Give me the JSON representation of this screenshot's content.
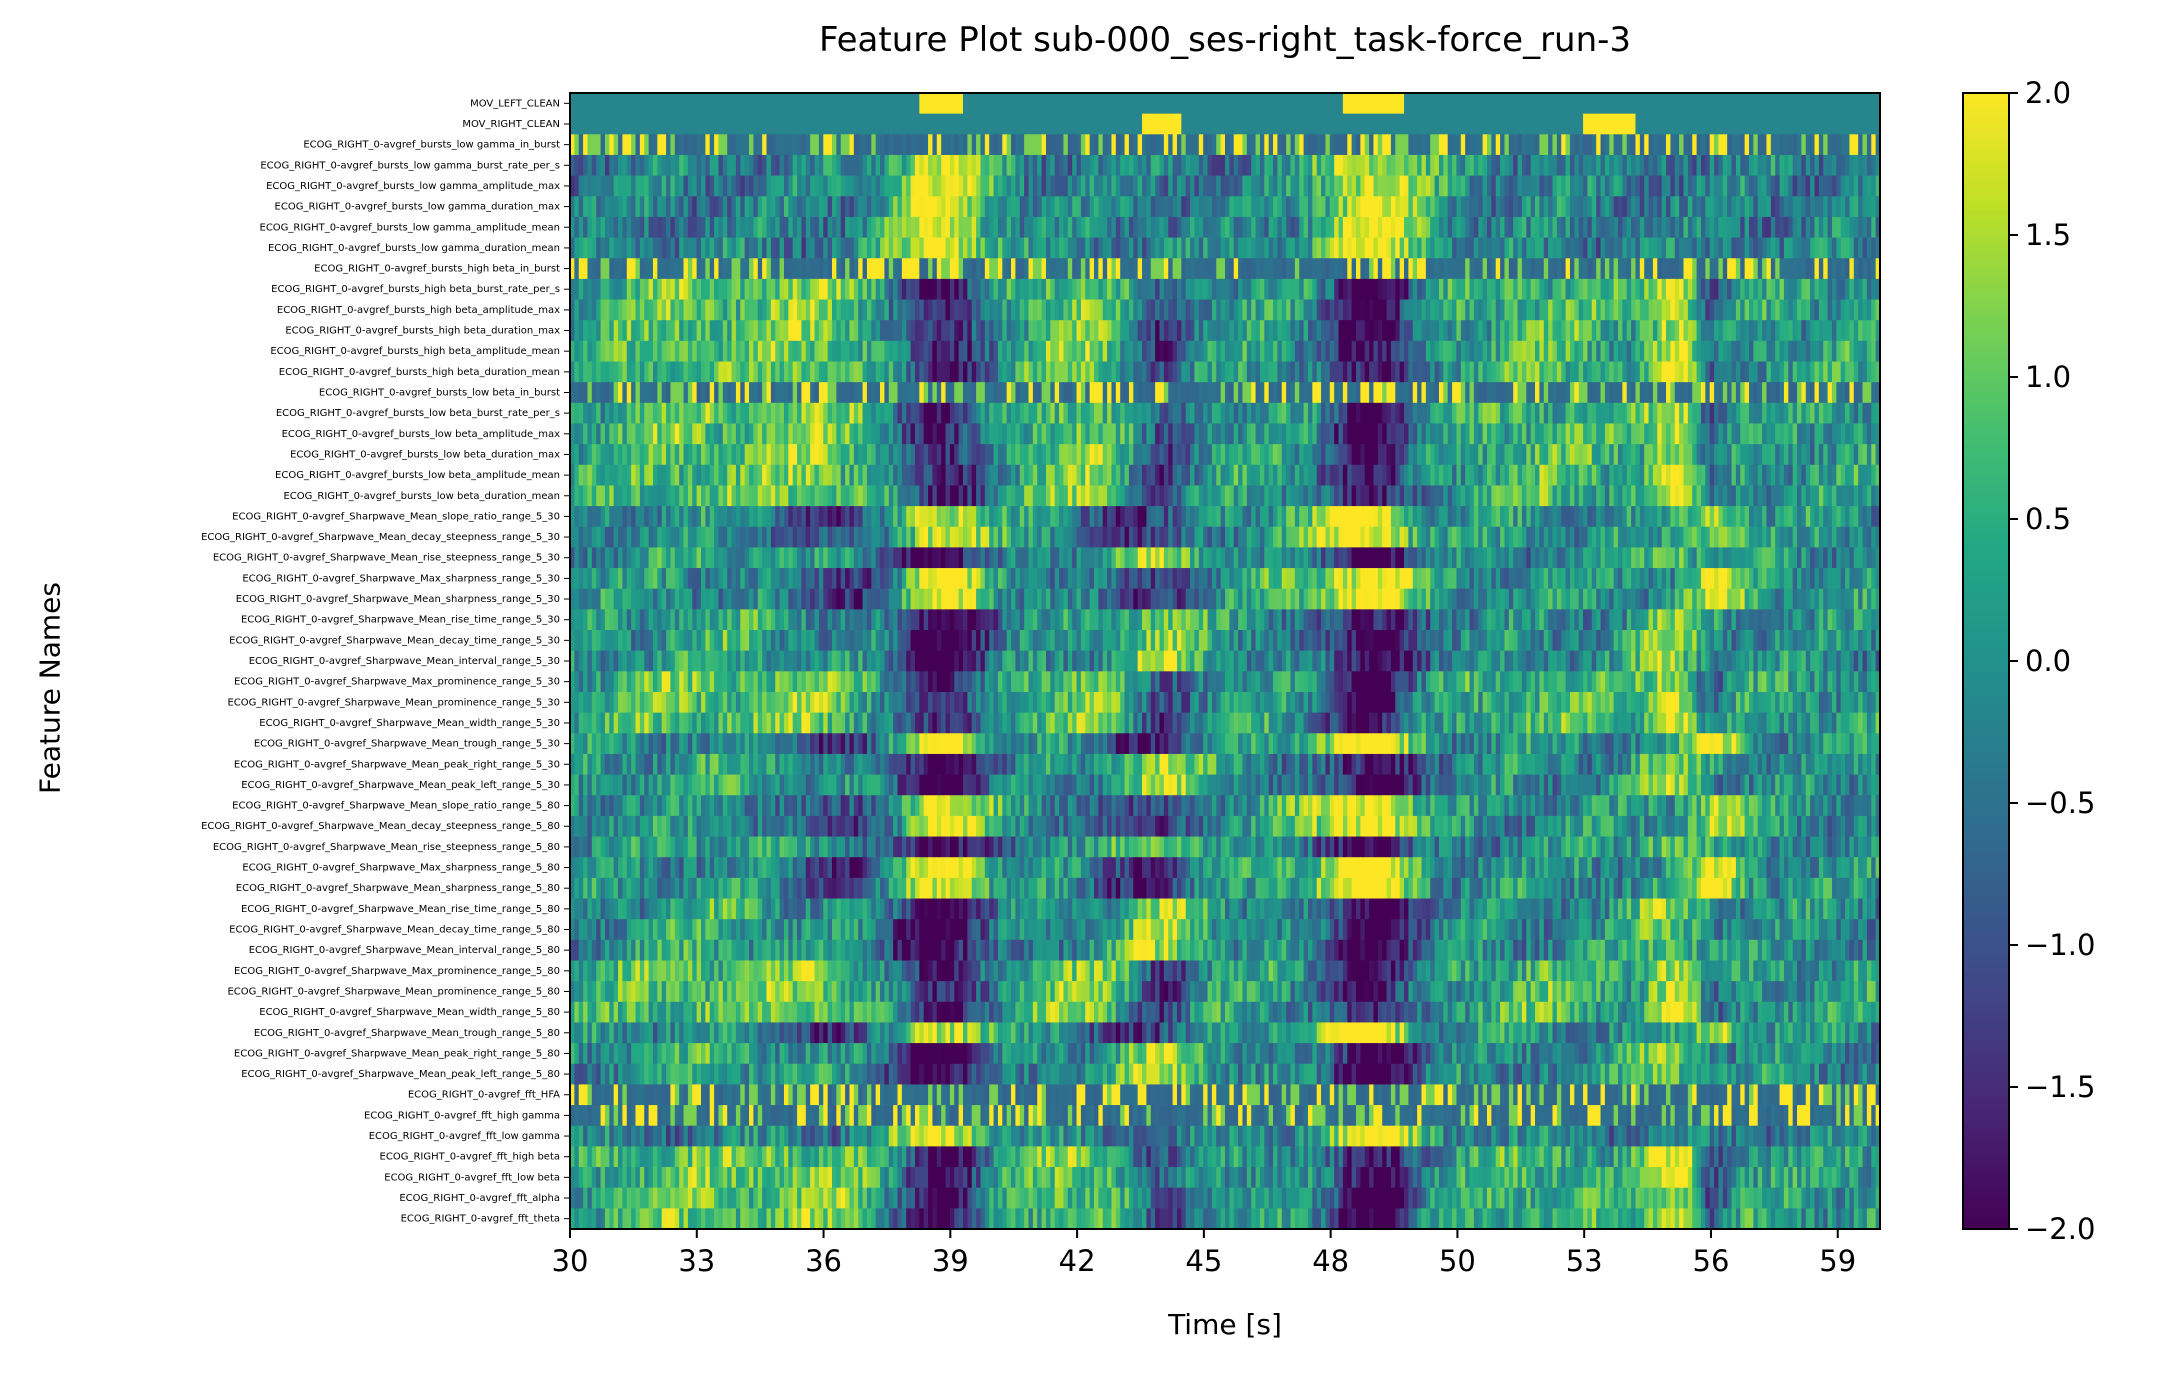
{
  "chart_data": {
    "type": "heatmap",
    "title": "Feature Plot sub-000_ses-right_task-force_run-3",
    "xlabel": "Time [s]",
    "ylabel": "Feature Names",
    "x_ticks": [
      "30",
      "33",
      "36",
      "39",
      "42",
      "45",
      "48",
      "50",
      "53",
      "56",
      "59"
    ],
    "x_tick_positions": [
      30,
      33,
      36,
      39,
      42,
      45,
      48,
      51,
      54,
      57,
      60
    ],
    "xlim": [
      30,
      61
    ],
    "colorscale": "viridis",
    "colorbar": {
      "ticks": [
        "−2.0",
        "−1.5",
        "−1.0",
        "−0.5",
        "0.0",
        "0.5",
        "1.0",
        "1.5",
        "2.0"
      ],
      "range": [
        -2.0,
        2.0
      ]
    },
    "features": [
      "MOV_LEFT_CLEAN",
      "MOV_RIGHT_CLEAN",
      "ECOG_RIGHT_0-avgref_bursts_low gamma_in_burst",
      "ECOG_RIGHT_0-avgref_bursts_low gamma_burst_rate_per_s",
      "ECOG_RIGHT_0-avgref_bursts_low gamma_amplitude_max",
      "ECOG_RIGHT_0-avgref_bursts_low gamma_duration_max",
      "ECOG_RIGHT_0-avgref_bursts_low gamma_amplitude_mean",
      "ECOG_RIGHT_0-avgref_bursts_low gamma_duration_mean",
      "ECOG_RIGHT_0-avgref_bursts_high beta_in_burst",
      "ECOG_RIGHT_0-avgref_bursts_high beta_burst_rate_per_s",
      "ECOG_RIGHT_0-avgref_bursts_high beta_amplitude_max",
      "ECOG_RIGHT_0-avgref_bursts_high beta_duration_max",
      "ECOG_RIGHT_0-avgref_bursts_high beta_amplitude_mean",
      "ECOG_RIGHT_0-avgref_bursts_high beta_duration_mean",
      "ECOG_RIGHT_0-avgref_bursts_low beta_in_burst",
      "ECOG_RIGHT_0-avgref_bursts_low beta_burst_rate_per_s",
      "ECOG_RIGHT_0-avgref_bursts_low beta_amplitude_max",
      "ECOG_RIGHT_0-avgref_bursts_low beta_duration_max",
      "ECOG_RIGHT_0-avgref_bursts_low beta_amplitude_mean",
      "ECOG_RIGHT_0-avgref_bursts_low beta_duration_mean",
      "ECOG_RIGHT_0-avgref_Sharpwave_Mean_slope_ratio_range_5_30",
      "ECOG_RIGHT_0-avgref_Sharpwave_Mean_decay_steepness_range_5_30",
      "ECOG_RIGHT_0-avgref_Sharpwave_Mean_rise_steepness_range_5_30",
      "ECOG_RIGHT_0-avgref_Sharpwave_Max_sharpness_range_5_30",
      "ECOG_RIGHT_0-avgref_Sharpwave_Mean_sharpness_range_5_30",
      "ECOG_RIGHT_0-avgref_Sharpwave_Mean_rise_time_range_5_30",
      "ECOG_RIGHT_0-avgref_Sharpwave_Mean_decay_time_range_5_30",
      "ECOG_RIGHT_0-avgref_Sharpwave_Mean_interval_range_5_30",
      "ECOG_RIGHT_0-avgref_Sharpwave_Max_prominence_range_5_30",
      "ECOG_RIGHT_0-avgref_Sharpwave_Mean_prominence_range_5_30",
      "ECOG_RIGHT_0-avgref_Sharpwave_Mean_width_range_5_30",
      "ECOG_RIGHT_0-avgref_Sharpwave_Mean_trough_range_5_30",
      "ECOG_RIGHT_0-avgref_Sharpwave_Mean_peak_right_range_5_30",
      "ECOG_RIGHT_0-avgref_Sharpwave_Mean_peak_left_range_5_30",
      "ECOG_RIGHT_0-avgref_Sharpwave_Mean_slope_ratio_range_5_80",
      "ECOG_RIGHT_0-avgref_Sharpwave_Mean_decay_steepness_range_5_80",
      "ECOG_RIGHT_0-avgref_Sharpwave_Mean_rise_steepness_range_5_80",
      "ECOG_RIGHT_0-avgref_Sharpwave_Max_sharpness_range_5_80",
      "ECOG_RIGHT_0-avgref_Sharpwave_Mean_sharpness_range_5_80",
      "ECOG_RIGHT_0-avgref_Sharpwave_Mean_rise_time_range_5_80",
      "ECOG_RIGHT_0-avgref_Sharpwave_Mean_decay_time_range_5_80",
      "ECOG_RIGHT_0-avgref_Sharpwave_Mean_interval_range_5_80",
      "ECOG_RIGHT_0-avgref_Sharpwave_Max_prominence_range_5_80",
      "ECOG_RIGHT_0-avgref_Sharpwave_Mean_prominence_range_5_80",
      "ECOG_RIGHT_0-avgref_Sharpwave_Mean_width_range_5_80",
      "ECOG_RIGHT_0-avgref_Sharpwave_Mean_trough_range_5_80",
      "ECOG_RIGHT_0-avgref_Sharpwave_Mean_peak_right_range_5_80",
      "ECOG_RIGHT_0-avgref_Sharpwave_Mean_peak_left_range_5_80",
      "ECOG_RIGHT_0-avgref_fft_HFA",
      "ECOG_RIGHT_0-avgref_fft_high gamma",
      "ECOG_RIGHT_0-avgref_fft_low gamma",
      "ECOG_RIGHT_0-avgref_fft_high beta",
      "ECOG_RIGHT_0-avgref_fft_low beta",
      "ECOG_RIGHT_0-avgref_fft_alpha",
      "ECOG_RIGHT_0-avgref_fft_theta"
    ],
    "profiles": {
      "mov_left": {
        "base": -0.2,
        "bumps": [
          [
            38.8,
            0.55,
            2.2
          ],
          [
            49.0,
            0.7,
            2.2
          ]
        ]
      },
      "mov_right": {
        "base": -0.2,
        "bumps": [
          [
            44.0,
            0.5,
            2.2
          ],
          [
            54.6,
            0.6,
            2.2
          ]
        ]
      },
      "movement": {
        "base": 0.2,
        "bumps": [
          [
            32.5,
            1.2,
            0.7
          ],
          [
            35.6,
            1.2,
            0.9
          ],
          [
            38.8,
            0.7,
            -2.2
          ],
          [
            42.0,
            1.0,
            0.9
          ],
          [
            44.0,
            0.5,
            -1.5
          ],
          [
            48.5,
            0.8,
            -0.3
          ],
          [
            49.0,
            0.7,
            -2.2
          ],
          [
            53.0,
            1.4,
            0.5
          ],
          [
            56.2,
            0.5,
            1.6
          ],
          [
            57.0,
            0.3,
            -1.4
          ]
        ]
      },
      "gamma_up": {
        "base": -0.3,
        "bumps": [
          [
            38.8,
            0.9,
            2.3
          ],
          [
            49.0,
            1.0,
            2.3
          ]
        ]
      },
      "sharp_a": {
        "base": 0.0,
        "bumps": [
          [
            36.5,
            1.0,
            -1.3
          ],
          [
            38.8,
            0.8,
            2.1
          ],
          [
            43.5,
            0.9,
            -1.4
          ],
          [
            47.5,
            0.9,
            0.8
          ],
          [
            49.0,
            0.7,
            2.2
          ],
          [
            57.2,
            0.5,
            1.7
          ]
        ]
      },
      "sharp_b": {
        "base": -0.1,
        "bumps": [
          [
            33.5,
            1.2,
            0.6
          ],
          [
            38.8,
            0.8,
            -2.2
          ],
          [
            44.0,
            0.8,
            1.4
          ],
          [
            49.0,
            0.8,
            -2.1
          ],
          [
            56.0,
            0.6,
            1.3
          ]
        ]
      },
      "binary": {
        "base": -0.6,
        "spikes": true
      }
    },
    "row_profiles": [
      "mov_left",
      "mov_right",
      "binary",
      "gamma_up",
      "gamma_up",
      "gamma_up",
      "gamma_up",
      "gamma_up",
      "binary",
      "movement",
      "movement",
      "movement",
      "movement",
      "movement",
      "binary",
      "movement",
      "movement",
      "movement",
      "movement",
      "movement",
      "sharp_a",
      "sharp_a",
      "sharp_b",
      "sharp_a",
      "sharp_a",
      "sharp_b",
      "sharp_b",
      "sharp_b",
      "movement",
      "movement",
      "movement",
      "sharp_a",
      "sharp_b",
      "sharp_b",
      "sharp_a",
      "sharp_a",
      "sharp_b",
      "sharp_a",
      "sharp_a",
      "sharp_b",
      "sharp_b",
      "sharp_b",
      "movement",
      "movement",
      "movement",
      "sharp_a",
      "sharp_b",
      "sharp_b",
      "binary",
      "binary",
      "gamma_up",
      "movement",
      "movement",
      "movement",
      "movement"
    ]
  }
}
